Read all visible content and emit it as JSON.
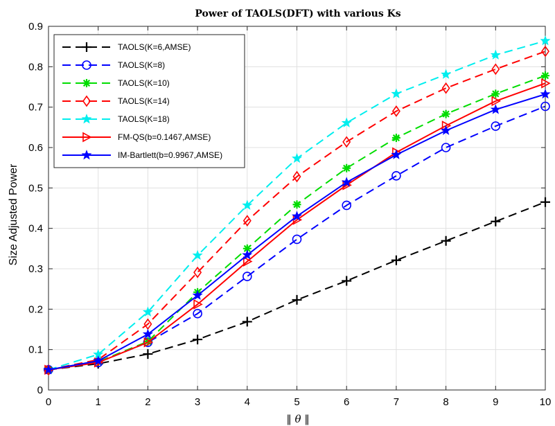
{
  "chart_data": {
    "type": "line",
    "title": "Power of TAOLS(DFT) with various Ks",
    "xlabel": "‖ θ ‖",
    "ylabel": "Size Adjusted Power",
    "xlim": [
      0,
      10
    ],
    "ylim": [
      0,
      0.9
    ],
    "xticks": [
      0,
      1,
      2,
      3,
      4,
      5,
      6,
      7,
      8,
      9,
      10
    ],
    "yticks": [
      0,
      0.1,
      0.2,
      0.3,
      0.4,
      0.5,
      0.6,
      0.7,
      0.8,
      0.9
    ],
    "grid": true,
    "legend_position": "top-left",
    "x": [
      0,
      1,
      2,
      3,
      4,
      5,
      6,
      7,
      8,
      9,
      10
    ],
    "series": [
      {
        "name": "TAOLS(K=6,AMSE)",
        "color": "#000000",
        "dash": "dashed",
        "marker": "plus",
        "values": [
          0.05,
          0.065,
          0.089,
          0.125,
          0.169,
          0.223,
          0.27,
          0.321,
          0.369,
          0.417,
          0.465
        ]
      },
      {
        "name": "TAOLS(K=8)",
        "color": "#0000ff",
        "dash": "dashed",
        "marker": "circle",
        "values": [
          0.05,
          0.068,
          0.118,
          0.189,
          0.281,
          0.373,
          0.457,
          0.53,
          0.6,
          0.653,
          0.702
        ]
      },
      {
        "name": "TAOLS(K=10)",
        "color": "#00dd00",
        "dash": "dashed",
        "marker": "asterisk",
        "values": [
          0.05,
          0.07,
          0.12,
          0.242,
          0.35,
          0.459,
          0.549,
          0.624,
          0.683,
          0.733,
          0.778
        ]
      },
      {
        "name": "TAOLS(K=14)",
        "color": "#ff0000",
        "dash": "dashed",
        "marker": "diamond",
        "values": [
          0.05,
          0.075,
          0.163,
          0.291,
          0.419,
          0.528,
          0.614,
          0.69,
          0.747,
          0.794,
          0.838
        ]
      },
      {
        "name": "TAOLS(K=18)",
        "color": "#00eeee",
        "dash": "dashed",
        "marker": "star",
        "values": [
          0.05,
          0.088,
          0.193,
          0.333,
          0.457,
          0.573,
          0.661,
          0.733,
          0.781,
          0.829,
          0.864
        ]
      },
      {
        "name": "FM-QS(b=0.1467,AMSE)",
        "color": "#ff0000",
        "dash": "solid",
        "marker": "triangle-right",
        "values": [
          0.05,
          0.068,
          0.118,
          0.212,
          0.318,
          0.421,
          0.507,
          0.588,
          0.654,
          0.715,
          0.759
        ]
      },
      {
        "name": "IM-Bartlett(b=0.9967,AMSE)",
        "color": "#0000ff",
        "dash": "solid",
        "marker": "star",
        "values": [
          0.05,
          0.072,
          0.138,
          0.234,
          0.334,
          0.43,
          0.514,
          0.582,
          0.642,
          0.694,
          0.732
        ]
      }
    ]
  }
}
